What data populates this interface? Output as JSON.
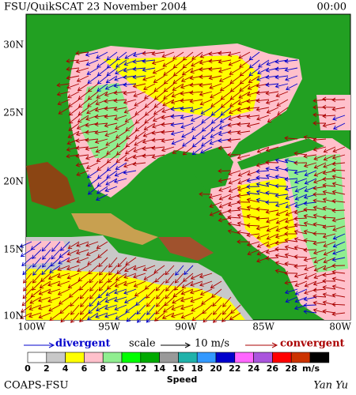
{
  "header": {
    "title": "FSU/QuikSCAT 23 November 2004",
    "time": "00:00"
  },
  "map": {
    "lat_labels": [
      "30N",
      "25N",
      "20N",
      "15N",
      "10N"
    ],
    "lon_labels": [
      "100W",
      "95W",
      "90W",
      "85W",
      "80W"
    ]
  },
  "legend": {
    "divergent": "divergent",
    "scale": "scale",
    "scale_value": "10 m/s",
    "convergent": "convergent"
  },
  "colorbar": {
    "values": [
      0,
      2,
      4,
      6,
      8,
      10,
      12,
      14,
      16,
      18,
      20,
      22,
      24,
      26,
      28
    ],
    "colors": [
      "#ffffff",
      "#c8c8c8",
      "#ffff00",
      "#ffc0cb",
      "#90ee90",
      "#00ff00",
      "#00aa00",
      "#999999",
      "#20b2aa",
      "#3399ff",
      "#0000cc",
      "#ff66ff",
      "#aa55dd",
      "#ff0000",
      "#cc3300",
      "#000000"
    ],
    "unit": "m/s",
    "label": "Speed"
  },
  "footer": {
    "left": "COAPS-FSU",
    "right": "Yan Yu"
  }
}
